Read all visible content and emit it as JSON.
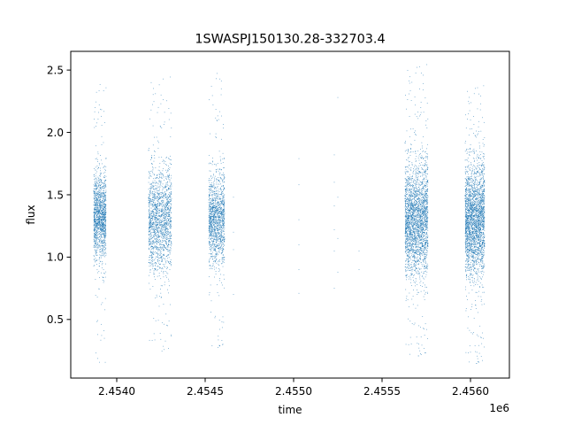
{
  "chart_data": {
    "type": "scatter",
    "title": "1SWASPJ150130.28-332703.4",
    "xlabel": "time",
    "ylabel": "flux",
    "x_offset_label": "1e6",
    "xlim": [
      2.45374,
      2.45622
    ],
    "ylim": [
      0.03,
      2.65
    ],
    "x_ticks": [
      2.454,
      2.4545,
      2.455,
      2.4555,
      2.456
    ],
    "x_tick_labels": [
      "2.4540",
      "2.4545",
      "2.4550",
      "2.4555",
      "2.4560"
    ],
    "y_ticks": [
      0.5,
      1.0,
      1.5,
      2.0,
      2.5
    ],
    "y_tick_labels": [
      "0.5",
      "1.0",
      "1.5",
      "2.0",
      "2.5"
    ],
    "grid": false,
    "point_color": "#1f77b4",
    "clusters": [
      {
        "x_start": 2.45387,
        "x_end": 2.45394,
        "y_center": 1.32,
        "y_spread": 0.17,
        "y_min": 0.15,
        "y_max": 2.39,
        "count": 1400
      },
      {
        "x_start": 2.45418,
        "x_end": 2.45431,
        "y_center": 1.3,
        "y_spread": 0.2,
        "y_min": 0.22,
        "y_max": 2.45,
        "count": 1700
      },
      {
        "x_start": 2.45452,
        "x_end": 2.45461,
        "y_center": 1.3,
        "y_spread": 0.18,
        "y_min": 0.25,
        "y_max": 2.5,
        "count": 1400
      },
      {
        "x_start": 2.45563,
        "x_end": 2.45576,
        "y_center": 1.3,
        "y_spread": 0.22,
        "y_min": 0.18,
        "y_max": 2.55,
        "count": 2600
      },
      {
        "x_start": 2.45597,
        "x_end": 2.45608,
        "y_center": 1.3,
        "y_spread": 0.22,
        "y_min": 0.12,
        "y_max": 2.38,
        "count": 2600
      }
    ],
    "sparse_points": [
      [
        2.45466,
        1.48
      ],
      [
        2.45466,
        1.2
      ],
      [
        2.45466,
        1.06
      ],
      [
        2.45466,
        0.7
      ],
      [
        2.45503,
        1.79
      ],
      [
        2.45503,
        1.58
      ],
      [
        2.45503,
        1.3
      ],
      [
        2.45503,
        1.1
      ],
      [
        2.45503,
        0.9
      ],
      [
        2.45503,
        0.71
      ],
      [
        2.45523,
        1.82
      ],
      [
        2.45523,
        1.6
      ],
      [
        2.45523,
        1.41
      ],
      [
        2.45523,
        1.22
      ],
      [
        2.45523,
        1.05
      ],
      [
        2.45523,
        0.75
      ],
      [
        2.45525,
        2.28
      ],
      [
        2.45525,
        1.48
      ],
      [
        2.45525,
        1.15
      ],
      [
        2.45525,
        0.88
      ],
      [
        2.45537,
        1.05
      ],
      [
        2.45537,
        0.9
      ]
    ]
  }
}
